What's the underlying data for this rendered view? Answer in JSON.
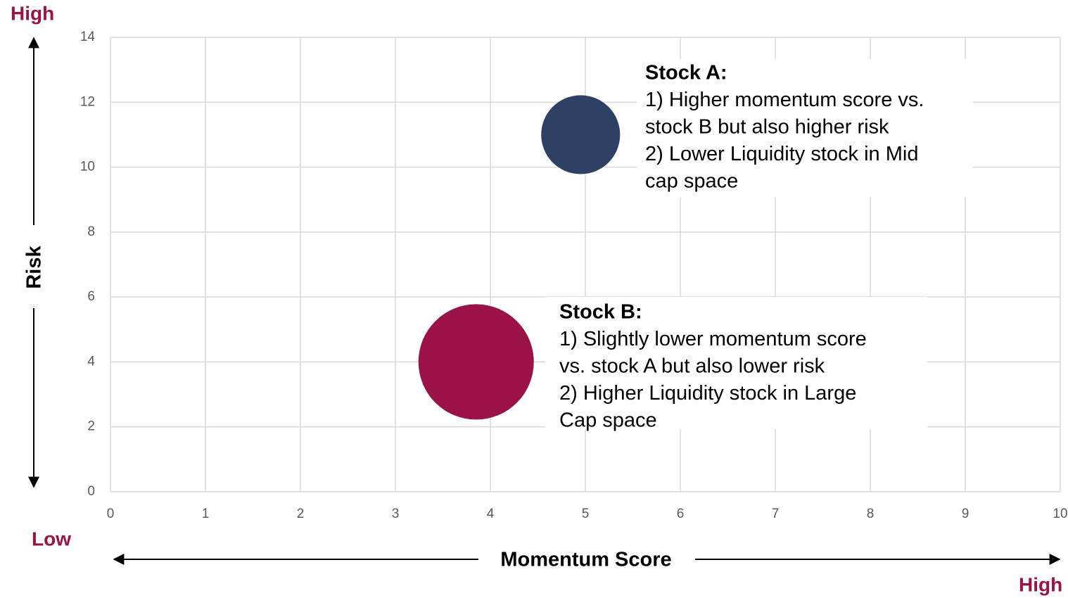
{
  "chart_data": {
    "type": "bubble",
    "xlabel": "Momentum Score",
    "ylabel": "Risk",
    "axis_end_labels": {
      "y_high": "High",
      "low": "Low",
      "x_high": "High"
    },
    "xlim": [
      0,
      10
    ],
    "xticks": [
      0,
      1,
      2,
      3,
      4,
      5,
      6,
      7,
      8,
      9,
      10
    ],
    "ylim": [
      0,
      14
    ],
    "yticks": [
      0,
      2,
      4,
      6,
      8,
      10,
      12,
      14
    ],
    "grid": true,
    "series": [
      {
        "color": "#2e4063",
        "x": [
          4.95
        ],
        "values": [
          11
        ],
        "sizes": [
          50
        ]
      },
      {
        "color": "#9b1249",
        "x": [
          3.85
        ],
        "values": [
          4
        ],
        "sizes": [
          107
        ]
      }
    ],
    "annotations": [
      {
        "title": "Stock A:",
        "lines": [
          "1) Higher momentum score vs.",
          "stock B but also higher risk",
          "2) Lower Liquidity stock in Mid",
          "cap space"
        ]
      },
      {
        "title": "Stock B:",
        "lines": [
          "1) Slightly lower momentum score",
          "vs. stock A but also lower risk",
          "2) Higher Liquidity stock in Large",
          "Cap space"
        ]
      }
    ]
  }
}
